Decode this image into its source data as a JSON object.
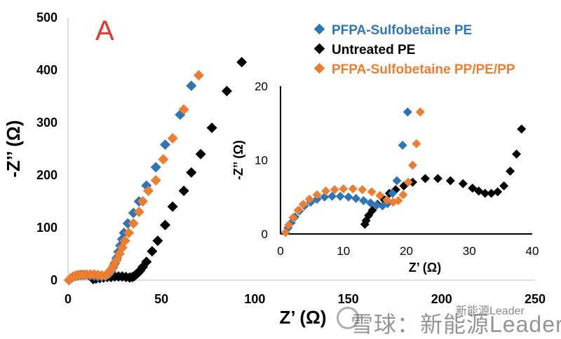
{
  "panel_label": "A",
  "legend": [
    {
      "label": "PFPA-Sulfobetaine  PE",
      "color": "#2e75b6"
    },
    {
      "label": "Untreated PE",
      "color": "#000000"
    },
    {
      "label": "PFPA-Sulfobetaine  PP/PE/PP",
      "color": "#ed7d31"
    }
  ],
  "watermark": {
    "top": "新能源Leader",
    "main": "雪球：新能源Leader"
  },
  "chart_data": [
    {
      "type": "scatter",
      "title": "",
      "xlabel": "Z’ (Ω)",
      "ylabel": "-Z’’ (Ω)",
      "xlim": [
        0,
        250
      ],
      "ylim": [
        0,
        500
      ],
      "xticks": [
        "0",
        "50",
        "100",
        "150",
        "200",
        "250"
      ],
      "yticks": [
        "0",
        "100",
        "200",
        "300",
        "400",
        "500"
      ],
      "grid": false,
      "marker": "diamond",
      "series": [
        {
          "name": "PFPA-Sulfobetaine  PE",
          "color": "#2e75b6",
          "x": [
            0.5,
            1.5,
            2.5,
            4,
            5.5,
            7,
            8.5,
            10,
            12,
            14,
            16,
            18,
            20,
            22,
            23,
            24,
            25,
            26,
            27,
            28,
            29,
            30,
            32,
            35,
            38,
            42,
            47,
            52,
            60,
            66
          ],
          "y": [
            0,
            3,
            6,
            8,
            9,
            10,
            10,
            10,
            9,
            8,
            7,
            7,
            8,
            12,
            17,
            24,
            32,
            42,
            54,
            66,
            78,
            90,
            108,
            128,
            150,
            180,
            215,
            258,
            315,
            370
          ]
        },
        {
          "name": "Untreated PE",
          "color": "#000000",
          "x": [
            13.5,
            15,
            17,
            19,
            21,
            23,
            25,
            27,
            29,
            31,
            33,
            34.5,
            35.5,
            36.5,
            37.5,
            38.5,
            40,
            42,
            45,
            48,
            52,
            56,
            62,
            66,
            71,
            77,
            85,
            93
          ],
          "y": [
            2,
            3,
            4,
            5,
            6,
            6,
            7,
            7,
            7,
            6,
            5,
            6,
            8,
            11,
            14,
            18,
            25,
            35,
            55,
            75,
            105,
            140,
            170,
            205,
            240,
            290,
            360,
            415
          ]
        },
        {
          "name": "PFPA-Sulfobetaine  PP/PE/PP",
          "color": "#ed7d31",
          "x": [
            0.5,
            1.5,
            3,
            4.5,
            6,
            8,
            10,
            12,
            14,
            16,
            18,
            20,
            21,
            22,
            23,
            24.5,
            26,
            27.5,
            29,
            30.5,
            32.5,
            35,
            38,
            40,
            43,
            47,
            51,
            56,
            62,
            70
          ],
          "y": [
            0,
            4,
            7,
            9,
            10,
            10,
            11,
            11,
            11,
            10,
            9,
            9,
            11,
            15,
            20,
            28,
            38,
            50,
            62,
            75,
            90,
            108,
            130,
            150,
            170,
            190,
            230,
            270,
            325,
            390
          ]
        }
      ]
    },
    {
      "type": "scatter",
      "title": "",
      "xlabel": "Z’ (Ω)",
      "ylabel": "-Z’’ (Ω)",
      "xlim": [
        0,
        40
      ],
      "ylim": [
        0,
        20
      ],
      "xticks": [
        "0",
        "10",
        "20",
        "30",
        "40"
      ],
      "yticks": [
        "0",
        "10",
        "20"
      ],
      "grid": false,
      "marker": "diamond",
      "series": [
        {
          "name": "PFPA-Sulfobetaine  PE",
          "color": "#2e75b6",
          "x": [
            0.8,
            1.2,
            1.7,
            2.3,
            3,
            3.8,
            4.8,
            5.8,
            7,
            8.2,
            9.5,
            10.8,
            12,
            13.2,
            14.3,
            15.3,
            16.2,
            17,
            17.8,
            18.5,
            19.4,
            20.2
          ],
          "y": [
            0.2,
            0.8,
            1.5,
            2.3,
            3.1,
            3.8,
            4.3,
            4.7,
            5,
            5.1,
            5.1,
            5,
            4.8,
            4.5,
            4.2,
            3.9,
            3.8,
            4.1,
            5.5,
            7.2,
            12,
            16.5
          ]
        },
        {
          "name": "Untreated PE",
          "color": "#000000",
          "x": [
            13.4,
            13.6,
            14,
            14.6,
            15.4,
            16.3,
            17.3,
            18.3,
            19.6,
            21,
            23,
            25,
            27,
            29,
            30.5,
            31.5,
            32.5,
            33.5,
            34.5,
            35.5,
            36.5,
            37.5,
            38.3
          ],
          "y": [
            1.3,
            1.8,
            2.5,
            3.2,
            4,
            4.8,
            5.5,
            6,
            6.5,
            7,
            7.5,
            7.5,
            7.2,
            6.8,
            6.2,
            5.8,
            5.5,
            5.5,
            5.7,
            6.5,
            8.5,
            10.8,
            14.2
          ]
        },
        {
          "name": "PFPA-Sulfobetaine  PP/PE/PP",
          "color": "#ed7d31",
          "x": [
            0.8,
            1.3,
            2,
            2.8,
            3.6,
            4.6,
            5.8,
            7.2,
            8.6,
            10,
            11.5,
            13,
            14.5,
            15.8,
            16.9,
            17.9,
            18.7,
            19.5,
            20.3,
            21,
            21.6,
            22.2
          ],
          "y": [
            0.2,
            1.2,
            2.2,
            3.2,
            4,
            4.7,
            5.3,
            5.8,
            6,
            6.1,
            6.1,
            6,
            5.7,
            5.2,
            4.6,
            4.3,
            4.5,
            5.3,
            7,
            9.3,
            12.2,
            16.5
          ]
        }
      ]
    }
  ]
}
